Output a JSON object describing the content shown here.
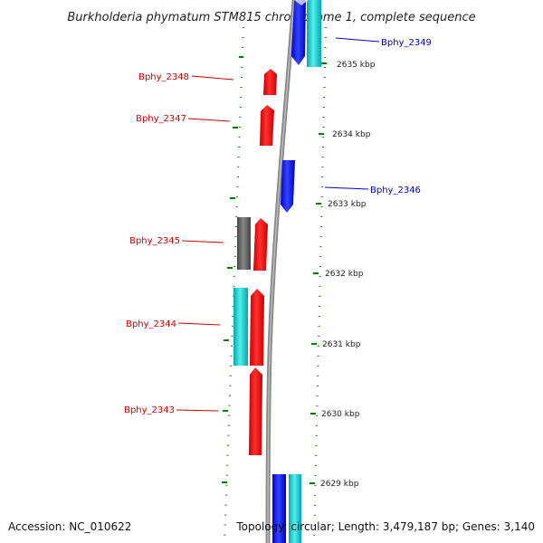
{
  "title": "Burkholderia phymatum STM815 chromosome 1, complete sequence",
  "footer": {
    "accession": "Accession: NC_010622",
    "stats": "Topology: circular; Length: 3,479,187 bp; Genes: 3,140"
  },
  "colors": {
    "forward_gene": "#ff0000",
    "reverse_gene": "#0000ff",
    "cyan_feature": "#00cccc",
    "gray_feature": "#666666",
    "backbone": "#999999",
    "tick_marks": "#008000",
    "label_red": "#cc0000",
    "label_blue": "#0000cc"
  },
  "kbp_ticks": [
    "2635 kbp",
    "2634 kbp",
    "2633 kbp",
    "2632 kbp",
    "2631 kbp",
    "2630 kbp",
    "2629 kbp"
  ],
  "gene_labels": [
    {
      "id": "Bphy_2349",
      "strand": "reverse"
    },
    {
      "id": "Bphy_2348",
      "strand": "forward"
    },
    {
      "id": "Bphy_2347",
      "strand": "forward"
    },
    {
      "id": "Bphy_2346",
      "strand": "reverse"
    },
    {
      "id": "Bphy_2345",
      "strand": "forward"
    },
    {
      "id": "Bphy_2344",
      "strand": "forward"
    },
    {
      "id": "Bphy_2343",
      "strand": "forward"
    }
  ]
}
